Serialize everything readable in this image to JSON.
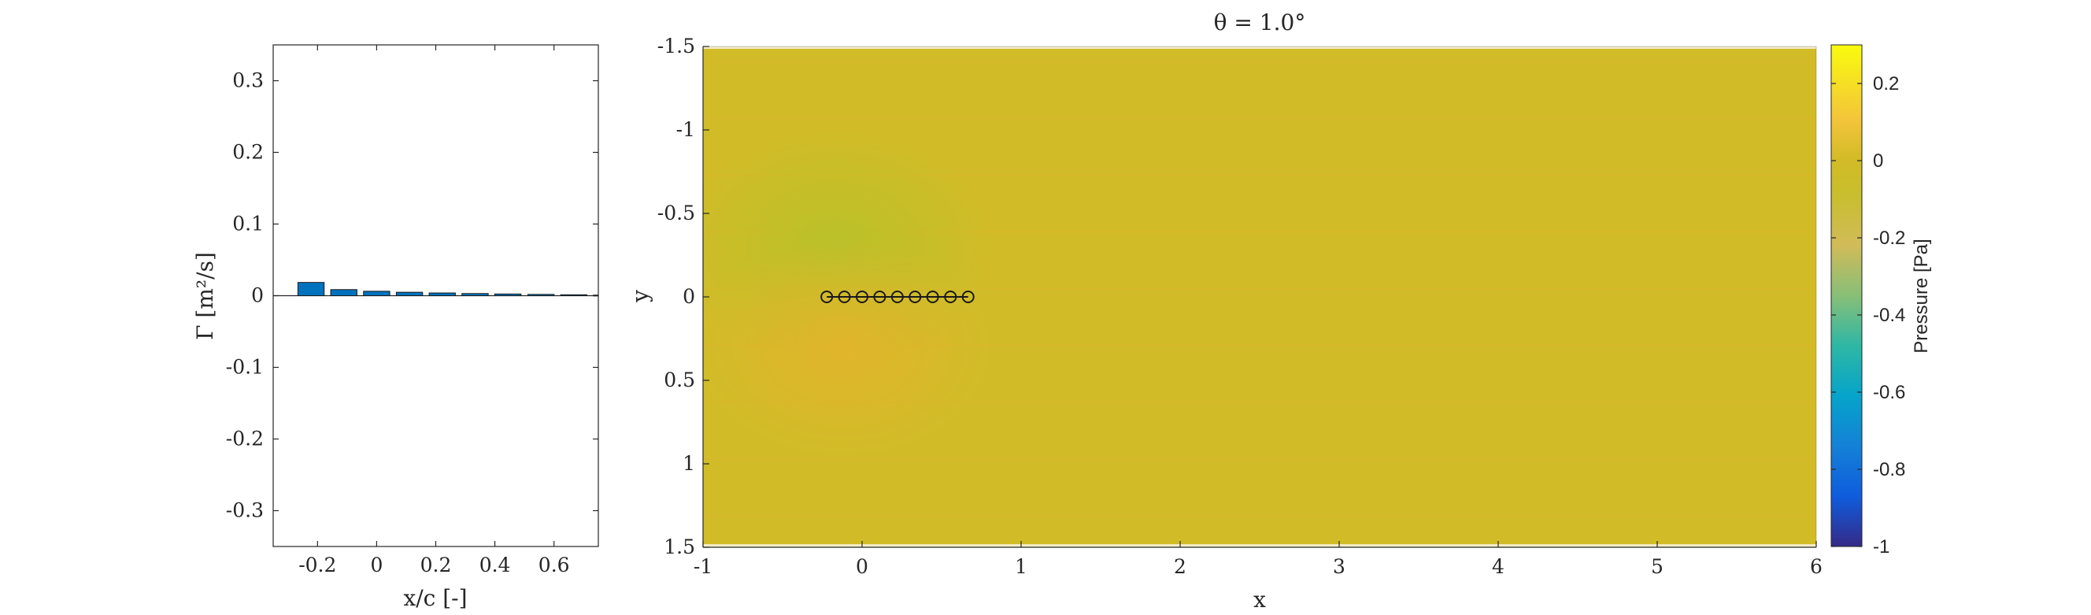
{
  "chart_data": [
    {
      "type": "bar",
      "xlabel": "x/c [-]",
      "ylabel": "Γ [m²/s]",
      "xlim": [
        -0.35,
        0.75
      ],
      "ylim": [
        -0.35,
        0.35
      ],
      "x_ticks": [
        "-0.2",
        "0",
        "0.2",
        "0.4",
        "0.6"
      ],
      "y_ticks": [
        "-0.3",
        "-0.2",
        "-0.1",
        "0",
        "0.1",
        "0.2",
        "0.3"
      ],
      "x": [
        -0.222,
        -0.111,
        0.0,
        0.111,
        0.222,
        0.333,
        0.444,
        0.556,
        0.667,
        0.778
      ],
      "values": [
        0.0185,
        0.0085,
        0.0062,
        0.0048,
        0.0038,
        0.003,
        0.0024,
        0.0018,
        0.0013,
        0.0008
      ],
      "colors": {
        "bar": "#0072BD",
        "edge": "#1a1a1a"
      }
    },
    {
      "type": "heatmap",
      "title": "θ = 1.0°",
      "xlabel": "x",
      "ylabel": "y",
      "xlim": [
        -1,
        6
      ],
      "ylim": [
        -1.5,
        1.5
      ],
      "y_reversed": true,
      "x_ticks": [
        "-1",
        "0",
        "1",
        "2",
        "3",
        "4",
        "5",
        "6"
      ],
      "y_ticks": [
        "-1.5",
        "-1",
        "-0.5",
        "0",
        "0.5",
        "1",
        "1.5"
      ],
      "markers": {
        "shape": "circle-open",
        "x": [
          -0.222,
          -0.111,
          0.0,
          0.111,
          0.222,
          0.333,
          0.444,
          0.556,
          0.667
        ],
        "y": [
          0,
          0,
          0,
          0,
          0,
          0,
          0,
          0,
          0
        ]
      },
      "colorbar": {
        "label": "Pressure [Pa]",
        "range": [
          -1,
          0.3
        ],
        "ticks": [
          "0.2",
          "0",
          "-0.2",
          "-0.4",
          "-0.6",
          "-0.8",
          "-1"
        ],
        "colormap": "parula"
      },
      "colors": {
        "field_base": "#D1BC27",
        "low_lobe": "#B8C12A",
        "high_lobe": "#E2B52C"
      }
    }
  ]
}
